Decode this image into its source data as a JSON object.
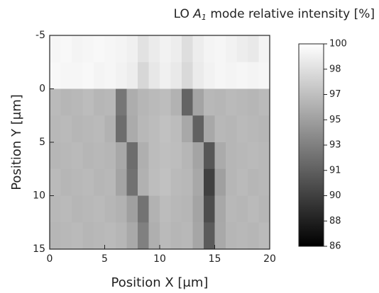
{
  "chart_data": {
    "type": "heatmap",
    "title": {
      "prefix": "LO",
      "symbol": "A",
      "subscript": "1",
      "suffix": "mode relative intensity [%]"
    },
    "x_label": "Position X [μm]",
    "y_label": "Position Y [μm]",
    "xbins": [
      0,
      1,
      2,
      3,
      4,
      5,
      6,
      7,
      8,
      9,
      10,
      11,
      12,
      13,
      14,
      15,
      16,
      17,
      18,
      19,
      20
    ],
    "ybins": [
      -5,
      -2.5,
      0,
      2.5,
      5,
      7.5,
      10,
      12.5,
      15
    ],
    "z": [
      [
        99.5,
        99.6,
        99.4,
        99.5,
        99.6,
        99.5,
        99.4,
        99.2,
        98.4,
        98.9,
        99.3,
        99.0,
        98.2,
        99.0,
        99.4,
        99.5,
        99.3,
        99.0,
        98.8,
        99.4
      ],
      [
        99.6,
        99.5,
        99.5,
        99.6,
        99.4,
        99.5,
        99.3,
        99.0,
        97.8,
        98.7,
        99.2,
        98.8,
        97.9,
        98.9,
        99.3,
        99.5,
        99.4,
        99.5,
        99.4,
        99.5
      ],
      [
        96.2,
        96.0,
        96.1,
        96.3,
        96.0,
        96.1,
        92.5,
        95.5,
        96.0,
        96.2,
        96.4,
        95.8,
        91.5,
        95.0,
        96.1,
        96.0,
        96.2,
        96.1,
        96.0,
        96.2
      ],
      [
        96.1,
        96.2,
        96.0,
        96.1,
        96.2,
        95.8,
        92.0,
        95.4,
        96.1,
        96.3,
        96.6,
        96.3,
        95.2,
        91.3,
        95.2,
        96.1,
        96.0,
        96.2,
        96.1,
        96.0
      ],
      [
        96.0,
        96.1,
        96.2,
        96.0,
        96.1,
        96.0,
        95.2,
        92.0,
        95.6,
        96.3,
        96.5,
        96.4,
        96.0,
        95.0,
        90.8,
        95.4,
        96.0,
        96.1,
        96.2,
        96.1
      ],
      [
        96.2,
        96.0,
        96.1,
        96.2,
        96.0,
        96.1,
        95.0,
        92.2,
        95.7,
        96.4,
        96.6,
        96.2,
        96.1,
        95.2,
        89.5,
        94.8,
        96.0,
        96.2,
        96.0,
        96.1
      ],
      [
        96.1,
        96.2,
        96.0,
        96.1,
        96.2,
        96.0,
        95.8,
        94.8,
        92.3,
        95.8,
        96.3,
        96.1,
        96.0,
        95.0,
        90.2,
        95.2,
        96.1,
        96.0,
        96.2,
        96.0
      ],
      [
        96.0,
        96.1,
        96.2,
        96.0,
        96.1,
        96.2,
        96.0,
        95.3,
        93.0,
        95.6,
        96.2,
        96.0,
        96.1,
        95.1,
        91.0,
        95.3,
        96.0,
        96.1,
        96.0,
        96.2
      ]
    ],
    "xlim": [
      0,
      20
    ],
    "ylim": [
      15,
      -5
    ],
    "xticks": [
      0,
      5,
      10,
      15,
      20
    ],
    "yticks": [
      -5,
      0,
      5,
      10,
      15
    ],
    "clim": [
      86,
      100
    ],
    "cticks": [
      100,
      {
        "value": 98.25,
        "label": "98"
      },
      {
        "value": 96.5,
        "label": "97"
      },
      {
        "value": 94.75,
        "label": "95"
      },
      93,
      {
        "value": 91.25,
        "label": "91"
      },
      {
        "value": 89.5,
        "label": "90"
      },
      {
        "value": 87.75,
        "label": "88"
      },
      86
    ],
    "colormap": [
      "#000000",
      "#ffffff"
    ]
  }
}
